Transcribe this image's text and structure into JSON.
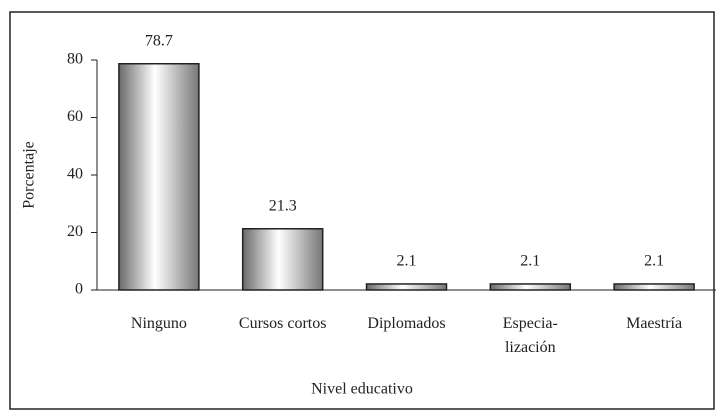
{
  "chart_data": {
    "type": "bar",
    "categories": [
      "Ninguno",
      "Cursos cortos",
      "Diplomados",
      "Especia-\nlización",
      "Maestría"
    ],
    "values": [
      78.7,
      21.3,
      2.1,
      2.1,
      2.1
    ],
    "ylim": [
      0,
      80
    ],
    "yticks": [
      0,
      20,
      40,
      60,
      80
    ],
    "y_label": "Porcentaje",
    "x_label": "Nivel educativo",
    "color": "#777777",
    "grid": false
  }
}
